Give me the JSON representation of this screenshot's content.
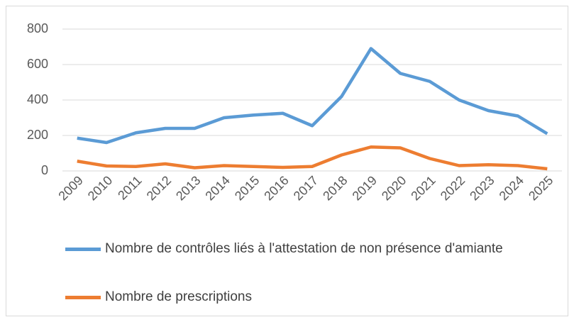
{
  "chart_data": {
    "type": "line",
    "categories": [
      "2009",
      "2010",
      "2011",
      "2012",
      "2013",
      "2014",
      "2015",
      "2016",
      "2017",
      "2018",
      "2019",
      "2020",
      "2021",
      "2022",
      "2023",
      "2024",
      "2025"
    ],
    "series": [
      {
        "name": "Nombre de contrôles liés à l'attestation de non présence d'amiante",
        "color": "#5b9bd5",
        "values": [
          185,
          160,
          215,
          240,
          240,
          300,
          315,
          325,
          255,
          420,
          690,
          550,
          505,
          400,
          340,
          310,
          210
        ]
      },
      {
        "name": "Nombre de prescriptions",
        "color": "#ed7d31",
        "values": [
          55,
          28,
          25,
          40,
          18,
          30,
          25,
          20,
          25,
          90,
          135,
          130,
          70,
          30,
          35,
          30,
          12
        ]
      }
    ],
    "ylim": [
      0,
      800
    ],
    "yticks": [
      0,
      200,
      400,
      600,
      800
    ],
    "grid": true,
    "legend": "bottom"
  }
}
